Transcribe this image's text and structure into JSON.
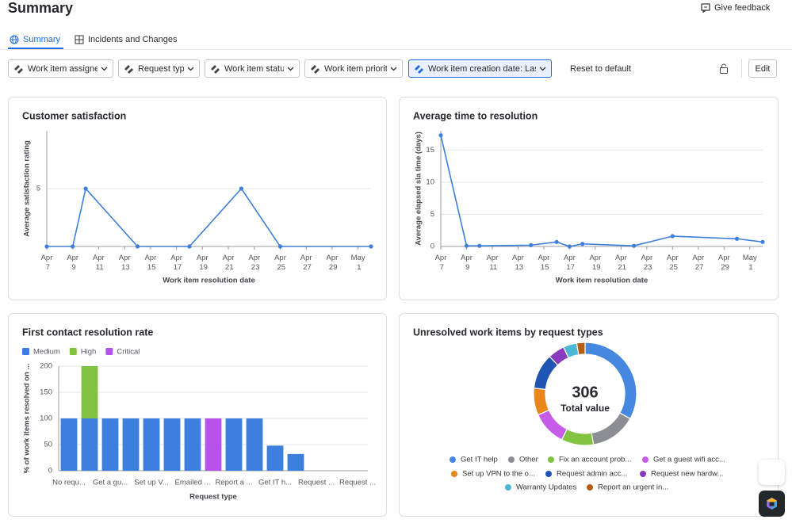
{
  "header": {
    "title": "Summary",
    "feedback": "Give feedback"
  },
  "tabs": [
    "Summary",
    "Incidents and Changes"
  ],
  "filters": [
    "Work item assignee",
    "Request type",
    "Work item status",
    "Work item priority",
    "Work item creation date: Last"
  ],
  "actions": {
    "reset": "Reset to default",
    "edit": "Edit"
  },
  "chart_data": [
    {
      "type": "line",
      "title": "Customer satisfaction",
      "xlabel": "Work item resolution date",
      "ylabel": "Average satisfaction rating",
      "x": [
        "Apr 7",
        "Apr 9",
        "Apr 10",
        "Apr 14",
        "Apr 18",
        "Apr 22",
        "Apr 25",
        "May 2"
      ],
      "values": [
        0,
        0,
        5,
        0,
        0,
        5,
        0,
        0
      ],
      "color": "#3d7fdc",
      "xlim": [
        "Apr 7",
        "May 2"
      ],
      "xticks": [
        "Apr 7",
        "Apr 9",
        "Apr 11",
        "Apr 13",
        "Apr 15",
        "Apr 17",
        "Apr 19",
        "Apr 21",
        "Apr 23",
        "Apr 25",
        "Apr 27",
        "Apr 29",
        "May 1"
      ],
      "ylim": [
        0,
        10
      ],
      "yticks": [
        5
      ],
      "grid": true
    },
    {
      "type": "line",
      "title": "Average time to resolution",
      "xlabel": "Work item resolution date",
      "ylabel": "Average elapsed sla time (days)",
      "x": [
        "Apr 7",
        "Apr 9",
        "Apr 10",
        "Apr 14",
        "Apr 16",
        "Apr 17",
        "Apr 18",
        "Apr 22",
        "Apr 25",
        "Apr 30",
        "May 2"
      ],
      "values": [
        17.3,
        0.1,
        0.1,
        0.2,
        0.7,
        0,
        0.4,
        0.1,
        1.6,
        1.2,
        0.7
      ],
      "color": "#3d7fdc",
      "xlim": [
        "Apr 7",
        "May 2"
      ],
      "xticks": [
        "Apr 7",
        "Apr 9",
        "Apr 11",
        "Apr 13",
        "Apr 15",
        "Apr 17",
        "Apr 19",
        "Apr 21",
        "Apr 23",
        "Apr 25",
        "Apr 27",
        "Apr 29",
        "May 1"
      ],
      "ylim": [
        0,
        18
      ],
      "yticks": [
        0,
        5,
        10,
        15
      ],
      "grid": true
    },
    {
      "type": "bar",
      "title": "First contact resolution rate",
      "xlabel": "Request type",
      "ylabel": "% of work items resolved on ...",
      "categories": [
        "No requ...",
        null,
        "Get a gu...",
        null,
        "Set up V...",
        null,
        "Emailed ...",
        null,
        "Report a ...",
        null,
        "Get IT h...",
        null,
        "Request ...",
        null,
        "Request ..."
      ],
      "series": [
        {
          "name": "Medium",
          "color": "#3d7fdc",
          "values": [
            100,
            100,
            100,
            100,
            100,
            100,
            100,
            null,
            100,
            100,
            48,
            32,
            null,
            null,
            null
          ]
        },
        {
          "name": "High",
          "color": "#82c341",
          "values": [
            null,
            100,
            null,
            null,
            null,
            null,
            null,
            null,
            null,
            null,
            null,
            null,
            null,
            null,
            null
          ]
        },
        {
          "name": "Critical",
          "color": "#b553e8",
          "values": [
            null,
            null,
            null,
            null,
            null,
            null,
            null,
            100,
            null,
            null,
            null,
            null,
            null,
            null,
            null
          ]
        }
      ],
      "stacked": true,
      "ylim": [
        0,
        200
      ],
      "yticks": [
        0,
        50,
        100,
        150,
        200
      ],
      "grid": true
    },
    {
      "type": "donut",
      "title": "Unresolved work items by request types",
      "total": 306,
      "center_label": "Total value",
      "categories": [
        "Get IT help",
        "Other",
        "Fix an account prob...",
        "Get a guest wifi acc...",
        "Set up VPN to the o...",
        "Request admin acc...",
        "Request new hardw...",
        "Warranty Updates",
        "Report an urgent in..."
      ],
      "values": [
        101,
        44,
        31,
        33,
        26,
        34,
        16,
        13,
        8
      ],
      "colors": [
        "#4688e0",
        "#8b8f94",
        "#82c341",
        "#c65ce8",
        "#e8861a",
        "#1f55b5",
        "#8a3bbd",
        "#4cb8d6",
        "#b55d12"
      ]
    }
  ]
}
